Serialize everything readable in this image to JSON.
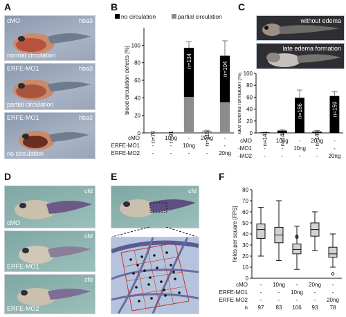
{
  "panel_labels": {
    "A": "A",
    "B": "B",
    "C": "C",
    "D": "D",
    "E": "E",
    "F": "F"
  },
  "panel_a": {
    "photos": [
      {
        "top_left": "cMO",
        "top_right": "hba3",
        "bottom": "normal circulation"
      },
      {
        "top_left": "ERFE-MO1",
        "top_right": "hba3",
        "bottom": "partial circulation"
      },
      {
        "top_left": "ERFE-MO1",
        "top_right": "hba3",
        "bottom": "no circulation"
      }
    ]
  },
  "panel_c_photos": {
    "top": "without edema",
    "bottom": "late edema formation"
  },
  "panel_d": {
    "photos": [
      {
        "top_right": "cfd",
        "bottom_left": "cMO"
      },
      {
        "top_right": "cfd",
        "bottom_left": "ERFE-MO1"
      },
      {
        "top_right": "cfd",
        "bottom_left": "ERFE-MO2"
      }
    ]
  },
  "panel_e": {
    "top_right": "cfd"
  },
  "condition_rows": {
    "labels": [
      "cMO",
      "ERFE-MO1",
      "ERFE-MO2"
    ],
    "panel_b_c": [
      [
        "-",
        "10ng",
        "-",
        "20ng",
        "-"
      ],
      [
        "-",
        "-",
        "10ng",
        "-",
        "-"
      ],
      [
        "-",
        "-",
        "-",
        "-",
        "20ng"
      ]
    ],
    "panel_f": [
      [
        "-",
        "10ng",
        "-",
        "20ng",
        "-"
      ],
      [
        "-",
        "-",
        "10ng",
        "-",
        "-"
      ],
      [
        "-",
        "-",
        "-",
        "-",
        "20ng"
      ]
    ],
    "n_label": "n",
    "n_values": [
      "97",
      "83",
      "106",
      "93",
      "78"
    ]
  },
  "chart_data": [
    {
      "type": "bar",
      "panel": "B",
      "legend": [
        {
          "name": "no circulation",
          "color": "#000000"
        },
        {
          "name": "partial circulation",
          "color": "#8c8c8c"
        }
      ],
      "ylabel": "blood circulation defects [%]",
      "ylim": [
        0,
        120
      ],
      "yticks": [
        0,
        20,
        40,
        60,
        80,
        100
      ],
      "categories": [
        "1",
        "2",
        "3",
        "4",
        "5"
      ],
      "series": [
        {
          "name": "no circulation",
          "values": [
            0,
            0,
            56,
            0,
            53
          ]
        },
        {
          "name": "partial circulation",
          "values": [
            0,
            0,
            41,
            2,
            35
          ]
        }
      ],
      "error_top": [
        null,
        null,
        104,
        3,
        105
      ],
      "n_labels": [
        "n=70",
        "n=91",
        "n=134",
        "n=115",
        "n=104"
      ],
      "n_on_bar": [
        false,
        false,
        true,
        false,
        true
      ]
    },
    {
      "type": "bar",
      "panel": "C",
      "ylabel": "late edema formation [%]",
      "ylim": [
        0,
        100
      ],
      "yticks": [
        0,
        20,
        40,
        60,
        80,
        100
      ],
      "categories": [
        "1",
        "2",
        "3",
        "4",
        "5"
      ],
      "series": [
        {
          "values": [
            1,
            4,
            59,
            2,
            62
          ]
        }
      ],
      "error_top": [
        null,
        6,
        72,
        4,
        69
      ],
      "n_labels": [
        "n=141",
        "n=148",
        "n=186",
        "n=145",
        "n=159"
      ],
      "n_on_bar": [
        false,
        false,
        true,
        false,
        true
      ]
    },
    {
      "type": "box",
      "panel": "F",
      "ylabel": "fields per square [FPS]",
      "ylim": [
        0,
        80
      ],
      "yticks": [
        0,
        10,
        20,
        30,
        40,
        50,
        60,
        70,
        80
      ],
      "categories": [
        "1",
        "2",
        "3",
        "4",
        "5"
      ],
      "boxes": [
        {
          "min": 20,
          "q1": 36,
          "median": 44,
          "q3": 49,
          "max": 64,
          "outliers": []
        },
        {
          "min": 16,
          "q1": 32,
          "median": 39,
          "q3": 46,
          "max": 70,
          "outliers": []
        },
        {
          "min": 8,
          "q1": 22,
          "median": 26,
          "q3": 31,
          "max": 47,
          "outliers": [
            38,
            37
          ]
        },
        {
          "min": 25,
          "q1": 38,
          "median": 44,
          "q3": 50,
          "max": 60,
          "outliers": []
        },
        {
          "min": 10,
          "q1": 19,
          "median": 22,
          "q3": 28,
          "max": 40,
          "outliers": [
            4
          ]
        }
      ],
      "box_color": "#d3d3d3"
    }
  ]
}
